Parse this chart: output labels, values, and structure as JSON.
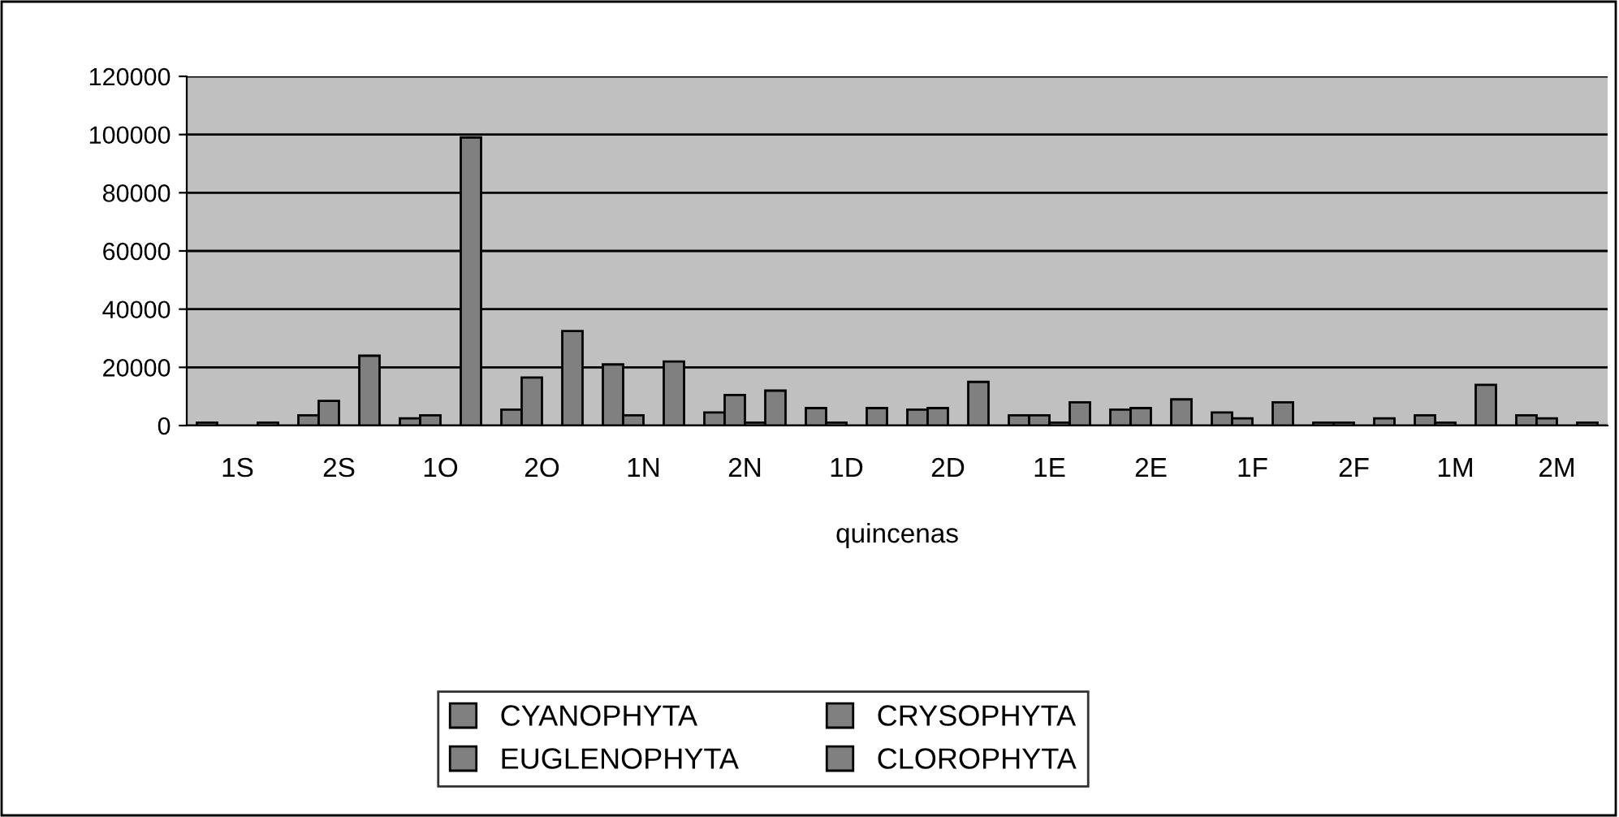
{
  "chart_data": {
    "type": "bar",
    "xlabel": "quincenas",
    "categories": [
      "1S",
      "2S",
      "1O",
      "2O",
      "1N",
      "2N",
      "1D",
      "2D",
      "1E",
      "2E",
      "1F",
      "2F",
      "1M",
      "2M"
    ],
    "series": [
      {
        "name": "CYANOPHYTA",
        "color": "#808080",
        "values": [
          1000,
          3500,
          2500,
          5500,
          21000,
          4500,
          6000,
          5500,
          3500,
          5500,
          4500,
          1000,
          3500,
          3500
        ]
      },
      {
        "name": "CRYSOPHYTA",
        "color": "#808080",
        "values": [
          null,
          8500,
          3500,
          16500,
          3500,
          10500,
          1000,
          6000,
          3500,
          6000,
          2500,
          1000,
          1000,
          2500
        ]
      },
      {
        "name": "EUGLENOPHYTA",
        "color": "#808080",
        "values": [
          null,
          null,
          null,
          null,
          null,
          1000,
          null,
          null,
          1000,
          null,
          null,
          null,
          null,
          null
        ]
      },
      {
        "name": "CLOROPHYTA",
        "color": "#808080",
        "values": [
          1000,
          24000,
          99000,
          32500,
          22000,
          12000,
          6000,
          15000,
          8000,
          9000,
          8000,
          2500,
          14000,
          1000
        ]
      }
    ],
    "ylim": [
      0,
      120000
    ],
    "yticks": [
      0,
      20000,
      40000,
      60000,
      80000,
      100000,
      120000
    ],
    "grid": "y",
    "legend": "bottom"
  }
}
